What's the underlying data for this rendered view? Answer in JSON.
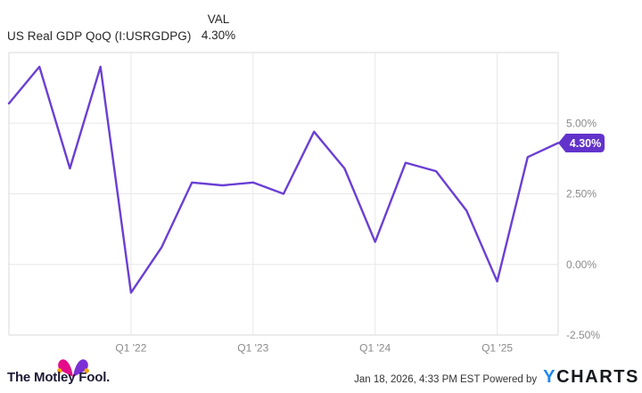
{
  "header": {
    "title": "US Real GDP QoQ (I:USRGDPG)",
    "val_column_label": "VAL",
    "val_value": "4.30%"
  },
  "chart_data": {
    "type": "line",
    "title": "US Real GDP QoQ (I:USRGDPG)",
    "series_name": "US Real GDP QoQ",
    "unit": "%",
    "categories": [
      "Q1 '21",
      "Q2 '21",
      "Q3 '21",
      "Q4 '21",
      "Q1 '22",
      "Q2 '22",
      "Q3 '22",
      "Q4 '22",
      "Q1 '23",
      "Q2 '23",
      "Q3 '23",
      "Q4 '23",
      "Q1 '24",
      "Q2 '24",
      "Q3 '24",
      "Q4 '24",
      "Q1 '25",
      "Q2 '25",
      "Q3 '25"
    ],
    "values": [
      5.7,
      7.0,
      3.4,
      7.0,
      -1.0,
      0.6,
      2.9,
      2.8,
      2.9,
      2.5,
      4.7,
      3.4,
      0.8,
      3.6,
      3.3,
      1.9,
      -0.6,
      3.8,
      4.3
    ],
    "ylim": [
      -2.5,
      7.5
    ],
    "y_ticks": [
      {
        "value": 5.0,
        "label": "5.00%"
      },
      {
        "value": 2.5,
        "label": "2.50%"
      },
      {
        "value": 0.0,
        "label": "0.00%"
      },
      {
        "value": -2.5,
        "label": "-2.50%"
      }
    ],
    "x_ticks": [
      {
        "index": 4,
        "label": "Q1 '22"
      },
      {
        "index": 8,
        "label": "Q1 '23"
      },
      {
        "index": 12,
        "label": "Q1 '24"
      },
      {
        "index": 16,
        "label": "Q1 '25"
      }
    ],
    "last_value_label": "4.30%",
    "grid": true,
    "legend": false,
    "y_axis_position": "right"
  },
  "footer": {
    "brand": "The Motley Fool.",
    "timestamp": "Jan 18, 2026, 4:33 PM EST",
    "powered_by_label": "Powered by",
    "ycharts_wordmark_y": "Y",
    "ycharts_wordmark_rest": "CHARTS"
  },
  "theme": {
    "line_color": "#6a3fd4",
    "tag_bg": "#6233cb",
    "tag_text": "#ffffff",
    "axis_text": "#8a8a8a",
    "grid_color": "#e8e8e8",
    "border_color": "#d9d9d9",
    "header_text": "#262626",
    "ycharts_blue": "#1e88f2",
    "ycharts_dark": "#15181d",
    "tmf_text": "#1d1a35",
    "tmf_magenta": "#e40c8b",
    "tmf_purple": "#7c2fd4",
    "tmf_gold": "#f7a40a"
  }
}
